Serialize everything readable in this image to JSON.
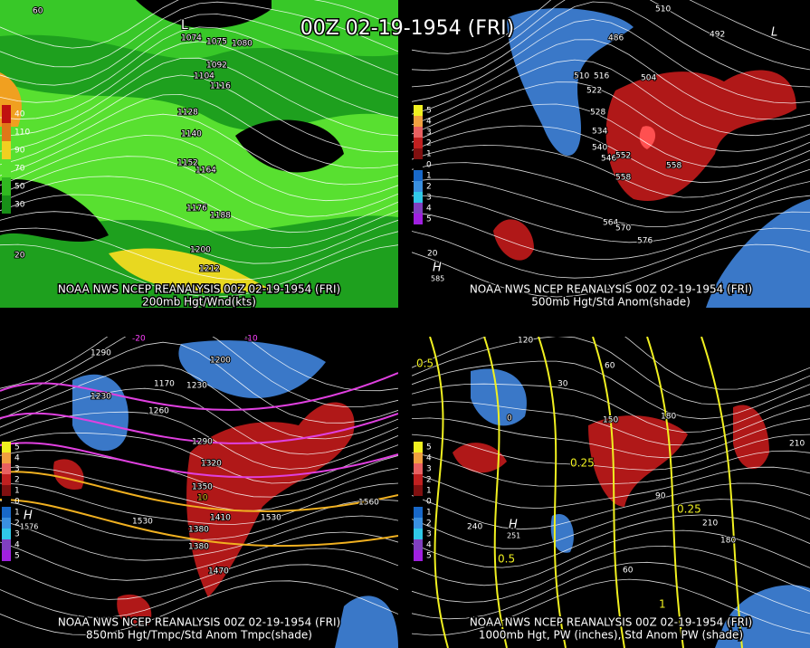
{
  "title": "00Z 02-19-1954 (FRI)",
  "panels": [
    {
      "caption_1": "NOAA NWS NCEP REANALYSIS 00Z 02-19-1954 (FRI)",
      "caption_2": "200mb Hgt/Wnd(kts)",
      "legend": [
        "40",
        "110",
        "90",
        "70",
        "50",
        "30"
      ],
      "labels": [
        "L",
        "1074",
        "1075",
        "1080",
        "1092",
        "1104",
        "1116",
        "1128",
        "1140",
        "1152",
        "1164",
        "1176",
        "1188",
        "1200",
        "1212",
        "60",
        "20"
      ]
    },
    {
      "caption_1": "NOAA NWS NCEP REANALYSIS 00Z 02-19-1954 (FRI)",
      "caption_2": "500mb Hgt/Std Anom(shade)",
      "legend": [
        "5",
        "4",
        "3",
        "2",
        "1",
        "0",
        "1",
        "2",
        "3",
        "4",
        "5"
      ],
      "labels": [
        "510",
        "486",
        "492",
        "510",
        "516",
        "522",
        "504",
        "528",
        "534",
        "540",
        "546",
        "552",
        "558",
        "558",
        "564",
        "570",
        "576",
        "H",
        "585",
        "20",
        "L"
      ]
    },
    {
      "caption_1": "NOAA NWS NCEP REANALYSIS 00Z 02-19-1954 (FRI)",
      "caption_2": "850mb Hgt/Tmpc/Std Anom Tmpc(shade)",
      "legend": [
        "5",
        "4",
        "3",
        "2",
        "1",
        "0",
        "1",
        "2",
        "3",
        "4",
        "5"
      ],
      "labels": [
        "1290",
        "-20",
        "-10",
        "1170",
        "1200",
        "1230",
        "1230",
        "1260",
        "1290",
        "1320",
        "1350",
        "10",
        "1380",
        "1410",
        "1470",
        "1530",
        "1560",
        "1530",
        "H",
        "1576",
        "1380"
      ]
    },
    {
      "caption_1": "NOAA NWS NCEP REANALYSIS 00Z 02-19-1954 (FRI)",
      "caption_2": "1000mb Hgt, PW (inches), Std Anom PW (shade)",
      "legend": [
        "5",
        "4",
        "3",
        "2",
        "1",
        "0",
        "1",
        "2",
        "3",
        "4",
        "5"
      ],
      "labels": [
        "120",
        "0.5",
        "60",
        "30",
        "150",
        "180",
        "0.25",
        "0.25",
        "210",
        "240",
        "H",
        "251",
        "90",
        "60",
        "180",
        "0.5",
        "1",
        "210",
        "0"
      ]
    }
  ]
}
